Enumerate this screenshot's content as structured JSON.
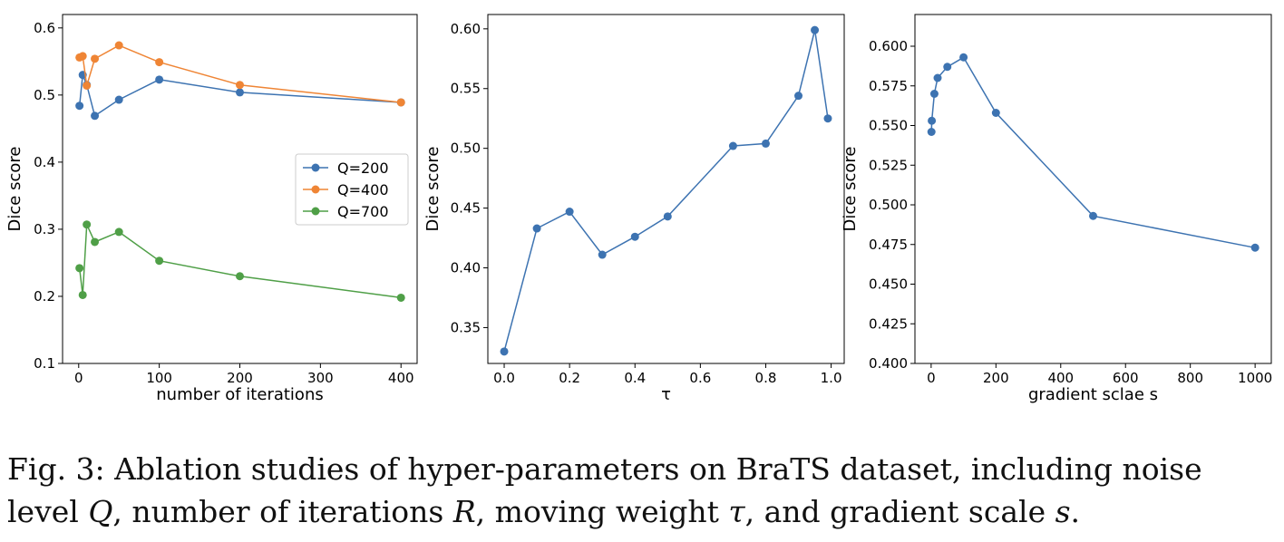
{
  "chart_data": [
    {
      "type": "line",
      "xlabel": "number of iterations",
      "ylabel": "Dice score",
      "xlim": [
        -20,
        420
      ],
      "ylim": [
        0.1,
        0.62
      ],
      "xticks": [
        0,
        100,
        200,
        300,
        400
      ],
      "xtick_labels": [
        "0",
        "100",
        "200",
        "300",
        "400"
      ],
      "yticks": [
        0.1,
        0.2,
        0.3,
        0.4,
        0.5,
        0.6
      ],
      "ytick_labels": [
        "0.1",
        "0.2",
        "0.3",
        "0.4",
        "0.5",
        "0.6"
      ],
      "legend": "center-right",
      "series": [
        {
          "name": "Q=200",
          "color": "#3d73b1",
          "x": [
            1,
            5,
            10,
            20,
            50,
            100,
            200,
            400
          ],
          "y": [
            0.484,
            0.53,
            0.515,
            0.469,
            0.493,
            0.523,
            0.504,
            0.489
          ]
        },
        {
          "name": "Q=400",
          "color": "#ef8535",
          "x": [
            1,
            5,
            10,
            20,
            50,
            100,
            200,
            400
          ],
          "y": [
            0.556,
            0.558,
            0.514,
            0.554,
            0.574,
            0.549,
            0.515,
            0.489
          ]
        },
        {
          "name": "Q=700",
          "color": "#4f9f47",
          "x": [
            1,
            5,
            10,
            20,
            50,
            100,
            200,
            400
          ],
          "y": [
            0.242,
            0.202,
            0.307,
            0.281,
            0.296,
            0.253,
            0.23,
            0.198
          ]
        }
      ]
    },
    {
      "type": "line",
      "xlabel": "τ",
      "ylabel": "Dice score",
      "xlim": [
        -0.05,
        1.04
      ],
      "ylim": [
        0.32,
        0.612
      ],
      "xticks": [
        0,
        0.2,
        0.4,
        0.6,
        0.8,
        1.0
      ],
      "xtick_labels": [
        "0.0",
        "0.2",
        "0.4",
        "0.6",
        "0.8",
        "1.0"
      ],
      "yticks": [
        0.35,
        0.4,
        0.45,
        0.5,
        0.55,
        0.6
      ],
      "ytick_labels": [
        "0.35",
        "0.40",
        "0.45",
        "0.50",
        "0.55",
        "0.60"
      ],
      "series": [
        {
          "color": "#3d73b1",
          "x": [
            0.0,
            0.1,
            0.2,
            0.3,
            0.4,
            0.5,
            0.7,
            0.8,
            0.9,
            0.95,
            0.99
          ],
          "y": [
            0.33,
            0.433,
            0.447,
            0.411,
            0.426,
            0.443,
            0.502,
            0.504,
            0.544,
            0.599,
            0.525
          ]
        }
      ]
    },
    {
      "type": "line",
      "xlabel": "gradient sclae s",
      "ylabel": "Dice score",
      "xlim": [
        -50,
        1050
      ],
      "ylim": [
        0.4,
        0.62
      ],
      "xticks": [
        0,
        200,
        400,
        600,
        800,
        1000
      ],
      "xtick_labels": [
        "0",
        "200",
        "400",
        "600",
        "800",
        "1000"
      ],
      "yticks": [
        0.4,
        0.425,
        0.45,
        0.475,
        0.5,
        0.525,
        0.55,
        0.575,
        0.6
      ],
      "ytick_labels": [
        "0.400",
        "0.425",
        "0.450",
        "0.475",
        "0.500",
        "0.525",
        "0.550",
        "0.575",
        "0.600"
      ],
      "series": [
        {
          "color": "#3d73b1",
          "x": [
            1,
            2,
            10,
            20,
            50,
            100,
            200,
            500,
            1000
          ],
          "y": [
            0.546,
            0.553,
            0.57,
            0.58,
            0.587,
            0.593,
            0.558,
            0.493,
            0.473
          ]
        }
      ]
    }
  ],
  "caption": {
    "line1": "Fig. 3: Ablation studies of hyper-parameters on BraTS dataset, including noise",
    "line2_a": "level ",
    "line2_q": "Q",
    "line2_b": ", number of iterations ",
    "line2_r": "R",
    "line2_c": ", moving weight ",
    "line2_tau": "τ",
    "line2_d": ", and gradient scale ",
    "line2_s": "s",
    "line2_e": "."
  }
}
